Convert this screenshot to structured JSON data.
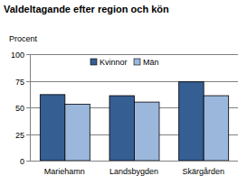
{
  "chart_data": {
    "type": "bar",
    "title": "Valdeltagande efter region och kön",
    "y_label": "Procent",
    "categories": [
      "Mariehamn",
      "Landsbygden",
      "Skärgården"
    ],
    "series": [
      {
        "name": "Kvinnor",
        "color": "#355e93",
        "values": [
          62,
          61,
          74
        ]
      },
      {
        "name": "Män",
        "color": "#9bb7dc",
        "values": [
          53,
          55,
          61
        ]
      }
    ],
    "ylim": [
      0,
      100
    ],
    "yticks": [
      0,
      25,
      50,
      75,
      100
    ],
    "grid": true,
    "legend": "top"
  }
}
